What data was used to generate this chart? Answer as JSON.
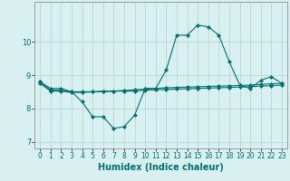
{
  "xlabel": "Humidex (Indice chaleur)",
  "x_values": [
    0,
    1,
    2,
    3,
    4,
    5,
    6,
    7,
    8,
    9,
    10,
    11,
    12,
    13,
    14,
    15,
    16,
    17,
    18,
    19,
    20,
    21,
    22,
    23
  ],
  "line1_y": [
    8.8,
    8.6,
    8.6,
    8.5,
    8.2,
    7.75,
    7.75,
    7.4,
    7.45,
    7.8,
    8.6,
    8.6,
    9.15,
    10.2,
    10.2,
    10.5,
    10.45,
    10.2,
    9.4,
    8.7,
    8.6,
    8.85,
    8.95,
    8.75
  ],
  "line2_y": [
    8.8,
    8.55,
    8.55,
    8.5,
    8.5,
    8.5,
    8.52,
    8.52,
    8.54,
    8.56,
    8.58,
    8.6,
    8.62,
    8.63,
    8.64,
    8.65,
    8.66,
    8.67,
    8.68,
    8.69,
    8.7,
    8.72,
    8.74,
    8.75
  ],
  "line3_y": [
    8.75,
    8.52,
    8.52,
    8.48,
    8.48,
    8.5,
    8.5,
    8.52,
    8.52,
    8.52,
    8.55,
    8.56,
    8.57,
    8.58,
    8.59,
    8.6,
    8.61,
    8.62,
    8.63,
    8.64,
    8.65,
    8.67,
    8.68,
    8.7
  ],
  "line_color": "#007070",
  "bg_color": "#d8f0f0",
  "grid_color": "#aed4d4",
  "ylim": [
    6.8,
    11.2
  ],
  "yticks": [
    7,
    8,
    9,
    10
  ],
  "xticks": [
    0,
    1,
    2,
    3,
    4,
    5,
    6,
    7,
    8,
    9,
    10,
    11,
    12,
    13,
    14,
    15,
    16,
    17,
    18,
    19,
    20,
    21,
    22,
    23
  ],
  "marker": "D",
  "markersize": 2.0,
  "linewidth": 0.8,
  "xlabel_fontsize": 7,
  "tick_fontsize": 5.5
}
